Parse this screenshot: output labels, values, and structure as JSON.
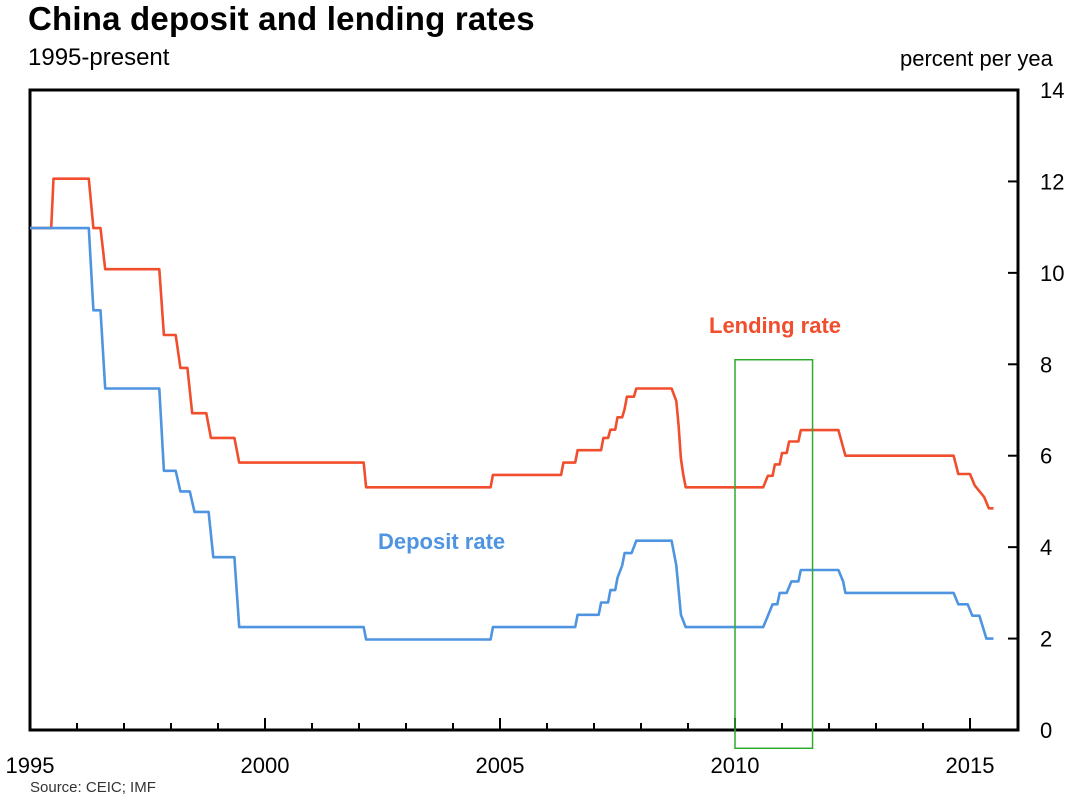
{
  "header": {
    "title": "China deposit and lending rates",
    "subtitle": "1995-present",
    "unit_label": "percent per yea"
  },
  "footer": {
    "source": "Source: CEIC; IMF"
  },
  "colors": {
    "lending": "#f04e2d",
    "deposit": "#4f94e0",
    "highlight": "#2eaa2e"
  },
  "chart_data": {
    "type": "line",
    "title": "China deposit and lending rates",
    "subtitle": "1995-present",
    "xlabel": "",
    "ylabel": "percent per yea",
    "xlim": [
      1995,
      2016
    ],
    "ylim": [
      0,
      14
    ],
    "y_axis_side": "right",
    "x_ticks": [
      1995,
      2000,
      2005,
      2010,
      2015
    ],
    "y_ticks": [
      0,
      2,
      4,
      6,
      8,
      10,
      12,
      14
    ],
    "grid": false,
    "annotations": {
      "lending_label": "Lending rate",
      "deposit_label": "Deposit rate"
    },
    "highlight_range": {
      "x": [
        2010.0,
        2011.65
      ],
      "y": [
        -0.4,
        8.1
      ]
    },
    "series": [
      {
        "name": "Lending rate",
        "points": [
          [
            1995.0,
            10.98
          ],
          [
            1995.45,
            10.98
          ],
          [
            1995.5,
            12.06
          ],
          [
            1996.25,
            12.06
          ],
          [
            1996.35,
            10.98
          ],
          [
            1996.5,
            10.98
          ],
          [
            1996.6,
            10.08
          ],
          [
            1997.75,
            10.08
          ],
          [
            1997.85,
            8.64
          ],
          [
            1998.1,
            8.64
          ],
          [
            1998.2,
            7.92
          ],
          [
            1998.35,
            7.92
          ],
          [
            1998.45,
            6.93
          ],
          [
            1998.75,
            6.93
          ],
          [
            1998.85,
            6.39
          ],
          [
            1999.35,
            6.39
          ],
          [
            1999.45,
            5.85
          ],
          [
            2002.1,
            5.85
          ],
          [
            2002.15,
            5.31
          ],
          [
            2004.8,
            5.31
          ],
          [
            2004.85,
            5.58
          ],
          [
            2006.3,
            5.58
          ],
          [
            2006.35,
            5.85
          ],
          [
            2006.6,
            5.85
          ],
          [
            2006.65,
            6.12
          ],
          [
            2007.15,
            6.12
          ],
          [
            2007.2,
            6.39
          ],
          [
            2007.3,
            6.39
          ],
          [
            2007.35,
            6.57
          ],
          [
            2007.45,
            6.57
          ],
          [
            2007.5,
            6.84
          ],
          [
            2007.6,
            6.84
          ],
          [
            2007.65,
            7.02
          ],
          [
            2007.7,
            7.29
          ],
          [
            2007.85,
            7.29
          ],
          [
            2007.9,
            7.47
          ],
          [
            2008.65,
            7.47
          ],
          [
            2008.75,
            7.2
          ],
          [
            2008.8,
            6.66
          ],
          [
            2008.85,
            5.94
          ],
          [
            2008.9,
            5.58
          ],
          [
            2008.95,
            5.31
          ],
          [
            2010.6,
            5.31
          ],
          [
            2010.7,
            5.56
          ],
          [
            2010.8,
            5.56
          ],
          [
            2010.85,
            5.81
          ],
          [
            2010.95,
            5.81
          ],
          [
            2011.0,
            6.06
          ],
          [
            2011.1,
            6.06
          ],
          [
            2011.15,
            6.31
          ],
          [
            2011.35,
            6.31
          ],
          [
            2011.4,
            6.56
          ],
          [
            2012.2,
            6.56
          ],
          [
            2012.35,
            6.0
          ],
          [
            2014.65,
            6.0
          ],
          [
            2014.75,
            5.6
          ],
          [
            2015.0,
            5.6
          ],
          [
            2015.1,
            5.35
          ],
          [
            2015.3,
            5.1
          ],
          [
            2015.4,
            4.85
          ],
          [
            2015.5,
            4.85
          ]
        ]
      },
      {
        "name": "Deposit rate",
        "points": [
          [
            1995.0,
            10.98
          ],
          [
            1996.25,
            10.98
          ],
          [
            1996.35,
            9.18
          ],
          [
            1996.5,
            9.18
          ],
          [
            1996.6,
            7.47
          ],
          [
            1997.75,
            7.47
          ],
          [
            1997.85,
            5.67
          ],
          [
            1998.1,
            5.67
          ],
          [
            1998.2,
            5.22
          ],
          [
            1998.4,
            5.22
          ],
          [
            1998.5,
            4.77
          ],
          [
            1998.8,
            4.77
          ],
          [
            1998.9,
            3.78
          ],
          [
            1999.35,
            3.78
          ],
          [
            1999.45,
            2.25
          ],
          [
            2002.1,
            2.25
          ],
          [
            2002.15,
            1.98
          ],
          [
            2004.8,
            1.98
          ],
          [
            2004.85,
            2.25
          ],
          [
            2006.6,
            2.25
          ],
          [
            2006.65,
            2.52
          ],
          [
            2007.1,
            2.52
          ],
          [
            2007.15,
            2.79
          ],
          [
            2007.3,
            2.79
          ],
          [
            2007.35,
            3.06
          ],
          [
            2007.45,
            3.06
          ],
          [
            2007.5,
            3.33
          ],
          [
            2007.6,
            3.6
          ],
          [
            2007.65,
            3.87
          ],
          [
            2007.8,
            3.87
          ],
          [
            2007.9,
            4.14
          ],
          [
            2008.65,
            4.14
          ],
          [
            2008.75,
            3.6
          ],
          [
            2008.85,
            2.52
          ],
          [
            2008.95,
            2.25
          ],
          [
            2010.6,
            2.25
          ],
          [
            2010.7,
            2.5
          ],
          [
            2010.8,
            2.75
          ],
          [
            2010.9,
            2.75
          ],
          [
            2010.95,
            3.0
          ],
          [
            2011.1,
            3.0
          ],
          [
            2011.2,
            3.25
          ],
          [
            2011.35,
            3.25
          ],
          [
            2011.4,
            3.5
          ],
          [
            2012.2,
            3.5
          ],
          [
            2012.3,
            3.25
          ],
          [
            2012.35,
            3.0
          ],
          [
            2014.65,
            3.0
          ],
          [
            2014.75,
            2.75
          ],
          [
            2014.95,
            2.75
          ],
          [
            2015.05,
            2.5
          ],
          [
            2015.2,
            2.5
          ],
          [
            2015.35,
            2.0
          ],
          [
            2015.5,
            2.0
          ]
        ]
      }
    ]
  }
}
